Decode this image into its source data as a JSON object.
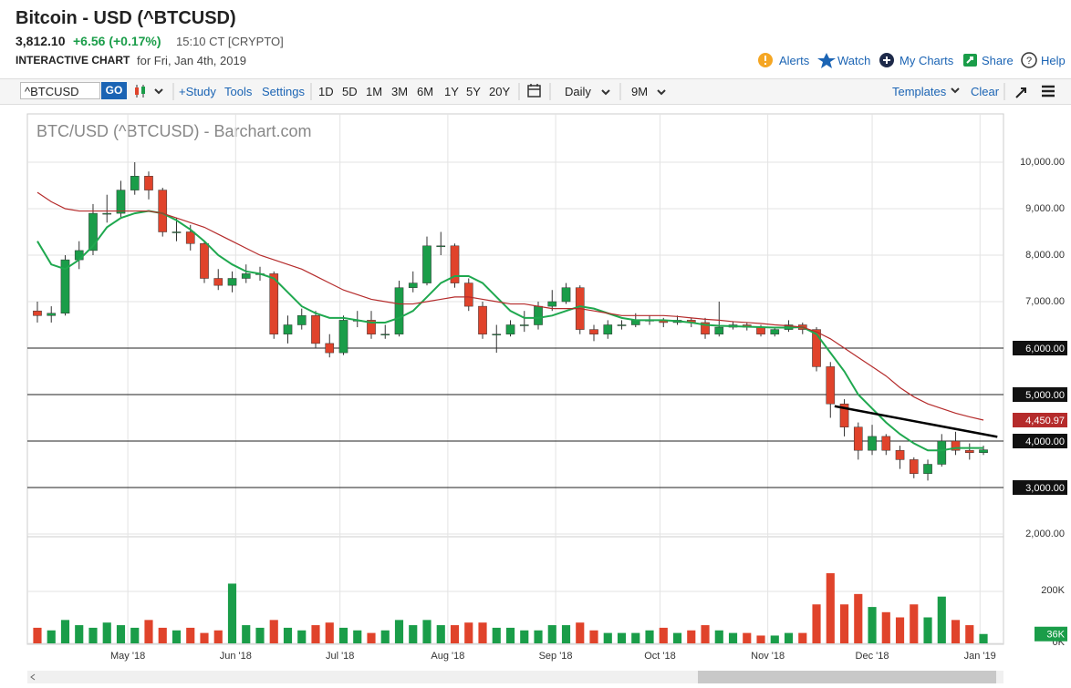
{
  "header": {
    "title": "Bitcoin - USD (^BTCUSD)",
    "price": "3,812.10",
    "change": "+6.56 (+0.17%)",
    "time": "15:10 CT [CRYPTO]",
    "chart_kind": "INTERACTIVE CHART",
    "date": "for Fri, Jan 4th, 2019",
    "links": [
      "Alerts",
      "Watch",
      "My Charts",
      "Share",
      "Help"
    ]
  },
  "toolbar": {
    "symbol": "^BTCUSD",
    "go": "GO",
    "tools": [
      "+Study",
      "Tools",
      "Settings"
    ],
    "ranges": [
      "1D",
      "5D",
      "1M",
      "3M",
      "6M",
      "1Y",
      "5Y",
      "20Y"
    ],
    "interval": "Daily",
    "period": "9M",
    "templates": "Templates",
    "clear": "Clear"
  },
  "chart_data": {
    "type": "candlestick",
    "title": "BTC/USD (^BTCUSD) - Barchart.com",
    "xlim": [
      -0.72,
      69.44
    ],
    "xticks": [
      {
        "value": 6.5,
        "label": "May '18"
      },
      {
        "value": 14.25,
        "label": "Jun '18"
      },
      {
        "value": 21.75,
        "label": "Jul '18"
      },
      {
        "value": 29.5,
        "label": "Aug '18"
      },
      {
        "value": 37.25,
        "label": "Sep '18"
      },
      {
        "value": 44.75,
        "label": "Oct '18"
      },
      {
        "value": 52.5,
        "label": "Nov '18"
      },
      {
        "value": 60,
        "label": "Dec '18"
      },
      {
        "value": 67.75,
        "label": "Jan '19"
      }
    ],
    "ylim": [
      2000,
      11000
    ],
    "yticks": [
      {
        "value": 2000,
        "label": "2,000.00"
      },
      {
        "value": 3000,
        "label": "3,000.00"
      },
      {
        "value": 4000,
        "label": "4,000.00"
      },
      {
        "value": 5000,
        "label": "5,000.00"
      },
      {
        "value": 6000,
        "label": "6,000.00"
      },
      {
        "value": 7000,
        "label": "7,000.00"
      },
      {
        "value": 8000,
        "label": "8,000.00"
      },
      {
        "value": 9000,
        "label": "9,000.00"
      },
      {
        "value": 10000,
        "label": "10,000.00"
      }
    ],
    "up_color": "#1a9d49",
    "down_color": "#e0432b",
    "candles": {
      "open": [
        6800,
        6700,
        6750,
        7900,
        8100,
        8900,
        8900,
        9400,
        9700,
        9400,
        8500,
        8500,
        8250,
        7500,
        7350,
        7500,
        7600,
        7600,
        6300,
        6500,
        6700,
        6100,
        5900,
        6600,
        6600,
        6300,
        6300,
        7300,
        7400,
        8200,
        8200,
        7400,
        6900,
        6300,
        6300,
        6500,
        6500,
        6900,
        7000,
        7300,
        6400,
        6300,
        6500,
        6500,
        6600,
        6600,
        6550,
        6600,
        6550,
        6300,
        6450,
        6500,
        6450,
        6300,
        6400,
        6500,
        6400,
        5600,
        4800,
        4300,
        3800,
        4100,
        3800,
        3600,
        3300,
        3500,
        4000,
        3800,
        3750
      ],
      "high": [
        7000,
        6900,
        8000,
        8300,
        9100,
        9300,
        9600,
        10000,
        9800,
        9450,
        8800,
        8650,
        8300,
        7700,
        7650,
        7800,
        7750,
        7650,
        6700,
        6850,
        6800,
        6300,
        6700,
        6800,
        6800,
        6500,
        7450,
        7650,
        8400,
        8500,
        8250,
        7500,
        7000,
        6500,
        6600,
        6800,
        7000,
        7250,
        7400,
        7350,
        6500,
        6600,
        6600,
        6750,
        6700,
        6650,
        6700,
        6650,
        6650,
        7000,
        6580,
        6550,
        6500,
        6450,
        6600,
        6550,
        6450,
        5700,
        4900,
        4400,
        4350,
        4150,
        3900,
        3650,
        3600,
        4150,
        4200,
        3950,
        3900
      ],
      "low": [
        6550,
        6550,
        6700,
        7700,
        8000,
        8700,
        8800,
        9300,
        9200,
        8400,
        8300,
        8100,
        7400,
        7250,
        7200,
        7400,
        7450,
        6200,
        6100,
        6400,
        6000,
        5800,
        5850,
        6450,
        6200,
        6200,
        6250,
        7200,
        7350,
        8000,
        7300,
        6800,
        6200,
        5900,
        6250,
        6350,
        6400,
        6800,
        6950,
        6300,
        6150,
        6200,
        6400,
        6450,
        6500,
        6450,
        6500,
        6450,
        6200,
        6250,
        6400,
        6380,
        6250,
        6250,
        6350,
        6300,
        5500,
        4500,
        4100,
        3600,
        3700,
        3700,
        3400,
        3200,
        3150,
        3450,
        3700,
        3600,
        3700
      ],
      "close": [
        6700,
        6750,
        7900,
        8100,
        8900,
        8900,
        9400,
        9700,
        9400,
        8500,
        8500,
        8250,
        7500,
        7350,
        7500,
        7600,
        7600,
        6300,
        6500,
        6700,
        6100,
        5900,
        6600,
        6600,
        6300,
        6300,
        7300,
        7400,
        8200,
        8200,
        7400,
        6900,
        6300,
        6300,
        6500,
        6500,
        6900,
        7000,
        7300,
        6400,
        6300,
        6500,
        6500,
        6600,
        6600,
        6550,
        6600,
        6550,
        6300,
        6450,
        6500,
        6450,
        6300,
        6400,
        6500,
        6400,
        5600,
        4800,
        4300,
        3800,
        4100,
        3800,
        3600,
        3300,
        3500,
        4000,
        3800,
        3750,
        3812
      ]
    },
    "moving_averages": [
      {
        "color": "#1fa84f",
        "values": [
          8300,
          7800,
          7700,
          7900,
          8200,
          8600,
          8800,
          8900,
          8950,
          8900,
          8750,
          8550,
          8300,
          8000,
          7800,
          7650,
          7600,
          7500,
          7200,
          6900,
          6750,
          6650,
          6650,
          6600,
          6550,
          6550,
          6650,
          6800,
          7100,
          7400,
          7550,
          7550,
          7400,
          7100,
          6800,
          6650,
          6650,
          6700,
          6800,
          6900,
          6850,
          6750,
          6650,
          6600,
          6600,
          6600,
          6580,
          6550,
          6500,
          6480,
          6470,
          6460,
          6450,
          6440,
          6440,
          6450,
          6300,
          5900,
          5500,
          5000,
          4700,
          4400,
          4150,
          3950,
          3800,
          3800,
          3850,
          3850,
          3851.01
        ]
      },
      {
        "color": "#b52b2b",
        "values": [
          9350,
          9150,
          9000,
          8950,
          8950,
          8950,
          8950,
          8950,
          8950,
          8900,
          8800,
          8700,
          8600,
          8450,
          8300,
          8150,
          8000,
          7900,
          7800,
          7700,
          7550,
          7400,
          7250,
          7150,
          7050,
          7000,
          6950,
          6950,
          7000,
          7050,
          7100,
          7100,
          7050,
          7000,
          6950,
          6950,
          6900,
          6850,
          6850,
          6850,
          6800,
          6750,
          6700,
          6700,
          6700,
          6700,
          6680,
          6650,
          6620,
          6600,
          6570,
          6550,
          6530,
          6500,
          6480,
          6450,
          6350,
          6200,
          6000,
          5800,
          5600,
          5400,
          5150,
          4950,
          4800,
          4700,
          4600,
          4520,
          4450.97
        ],
        "value_label": "4,450.97"
      }
    ],
    "levels": [
      {
        "value": 6000,
        "label": "6,000.00"
      },
      {
        "value": 5000,
        "label": "5,000.00"
      },
      {
        "value": 4000,
        "label": "4,000.00"
      },
      {
        "value": 3000,
        "label": "3,000.00"
      }
    ],
    "trendline": {
      "color": "#000000",
      "x": [
        57.3,
        69
      ],
      "values": [
        4750,
        4090
      ]
    },
    "volume": {
      "ylim": [
        0,
        400000
      ],
      "yticks": [
        {
          "value": 0,
          "label": "0K"
        },
        {
          "value": 200000,
          "label": "200K"
        }
      ],
      "values": [
        60000,
        50000,
        90000,
        70000,
        60000,
        80000,
        70000,
        60000,
        90000,
        60000,
        50000,
        60000,
        40000,
        50000,
        230000,
        70000,
        60000,
        90000,
        60000,
        50000,
        70000,
        80000,
        60000,
        50000,
        40000,
        50000,
        90000,
        70000,
        90000,
        70000,
        70000,
        80000,
        80000,
        60000,
        60000,
        50000,
        50000,
        70000,
        70000,
        80000,
        50000,
        40000,
        40000,
        40000,
        50000,
        60000,
        40000,
        50000,
        70000,
        50000,
        40000,
        40000,
        30000,
        30000,
        40000,
        40000,
        150000,
        270000,
        150000,
        190000,
        140000,
        120000,
        100000,
        150000,
        100000,
        180000,
        90000,
        70000,
        36000
      ],
      "value_label": "36K"
    }
  }
}
